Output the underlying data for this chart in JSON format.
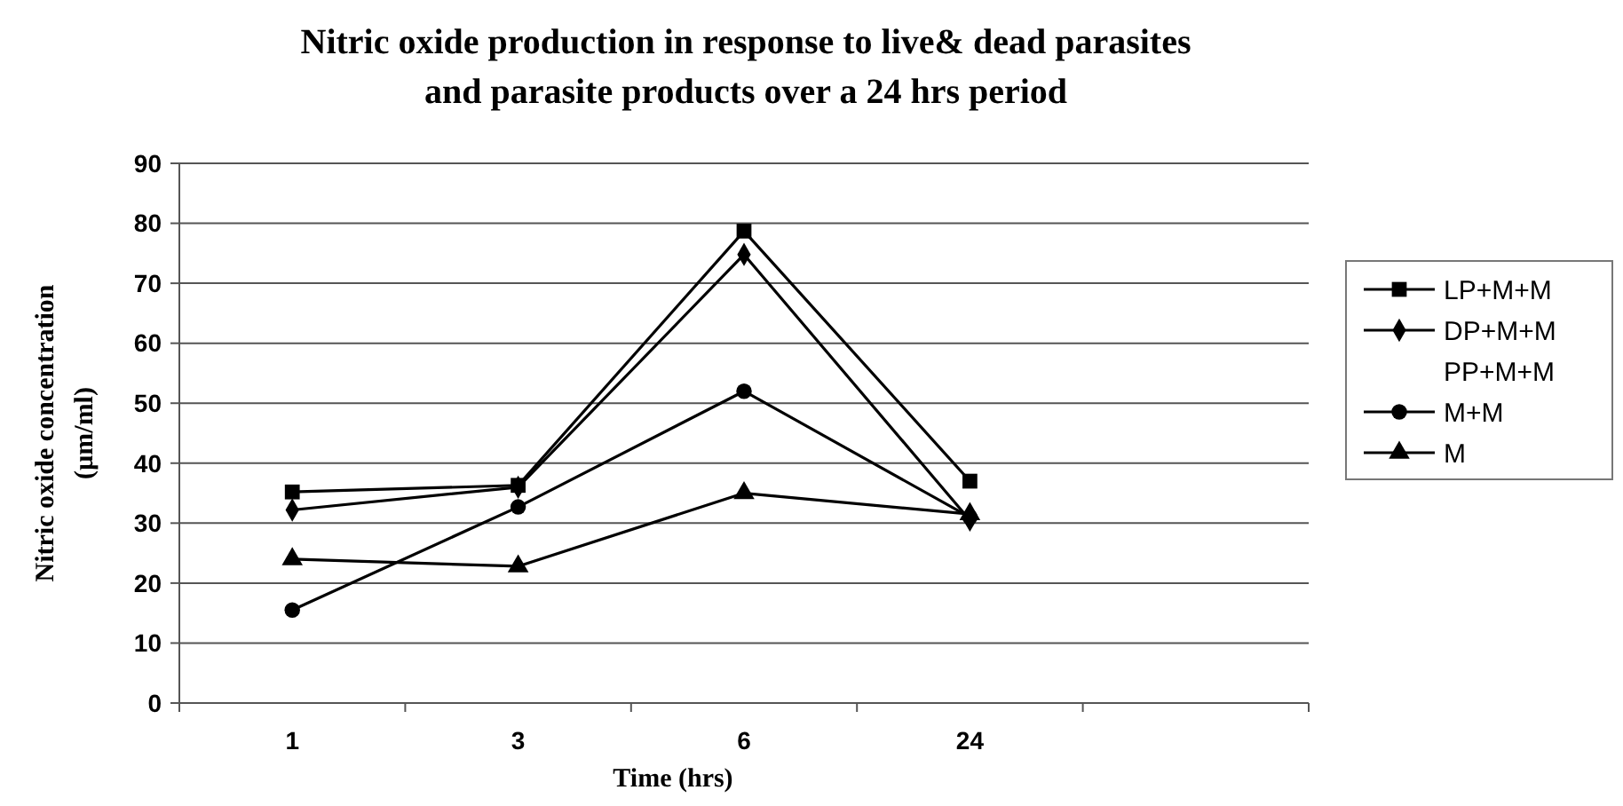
{
  "chart_data": {
    "type": "line",
    "title": "Nitric oxide production in response to live& dead parasites and parasite products over a 24 hrs period",
    "xlabel": "Time (hrs)",
    "ylabel": "Nitric oxide concentration (µm/ml)",
    "categories": [
      "1",
      "3",
      "6",
      "24",
      null
    ],
    "ylim": [
      0,
      90
    ],
    "yticks": [
      0,
      10,
      20,
      30,
      40,
      50,
      60,
      70,
      80,
      90
    ],
    "grid": "y",
    "legend": "right",
    "series": [
      {
        "name": "LP+M+M",
        "color": "#000000",
        "marker": "square",
        "values": [
          35.2,
          36.3,
          78.7,
          37,
          null
        ]
      },
      {
        "name": "DP+M+M",
        "color": "#000000",
        "marker": "diamond",
        "values": [
          32.2,
          36,
          74.8,
          30.5,
          null
        ]
      },
      {
        "name": "PP+M+M",
        "marker": "none",
        "values": [
          null,
          null,
          null,
          null,
          null
        ]
      },
      {
        "name": "M+M",
        "color": "#000000",
        "marker": "circle",
        "values": [
          15.5,
          32.7,
          52,
          31,
          null
        ]
      },
      {
        "name": "M",
        "color": "#000000",
        "marker": "triangle",
        "values": [
          24,
          22.8,
          35,
          31.5,
          null
        ]
      }
    ]
  }
}
